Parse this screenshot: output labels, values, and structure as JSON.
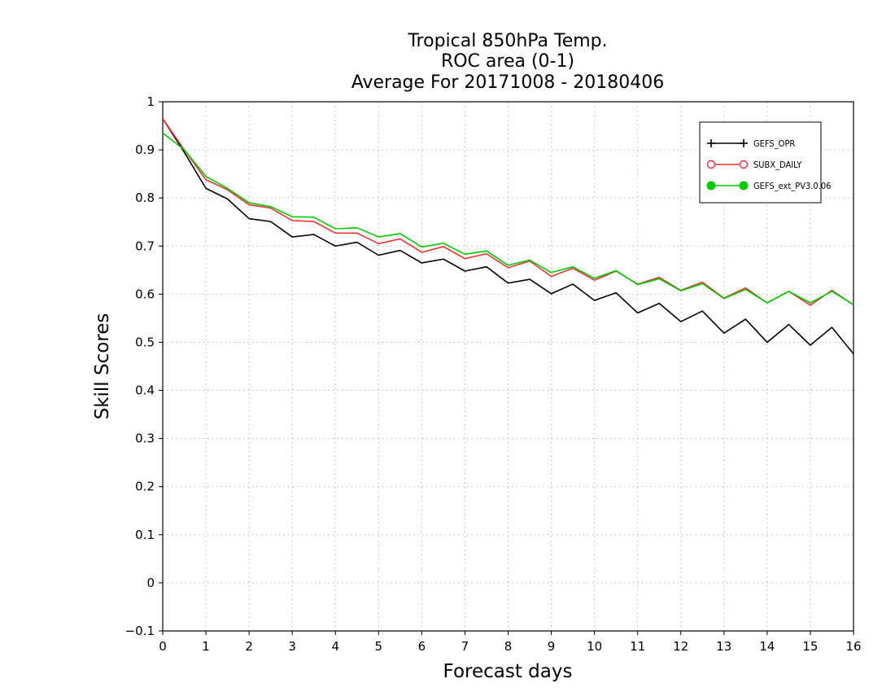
{
  "chart_data": {
    "type": "line",
    "title": [
      "Tropical 850hPa Temp.",
      "ROC area (0-1)",
      "Average For 20171008 - 20180406"
    ],
    "xlabel": "Forecast days",
    "ylabel": "Skill Scores",
    "xlim": [
      0,
      16
    ],
    "ylim": [
      -0.1,
      1
    ],
    "xticks": [
      "0",
      "1",
      "2",
      "3",
      "4",
      "5",
      "6",
      "7",
      "8",
      "9",
      "10",
      "11",
      "12",
      "13",
      "14",
      "15",
      "16"
    ],
    "yticks": [
      "−0.1",
      "0",
      "0.1",
      "0.2",
      "0.3",
      "0.4",
      "0.5",
      "0.6",
      "0.7",
      "0.8",
      "0.9",
      "1"
    ],
    "grid": true,
    "legend_position": "top-right",
    "x": [
      0,
      0.5,
      1,
      1.5,
      2,
      2.5,
      3,
      3.5,
      4,
      4.5,
      5,
      5.5,
      6,
      6.5,
      7,
      7.5,
      8,
      8.5,
      9,
      9.5,
      10,
      10.5,
      11,
      11.5,
      12,
      12.5,
      13,
      13.5,
      14,
      14.5,
      15,
      15.5,
      16
    ],
    "series": [
      {
        "name": "GEFS_OPR",
        "color": "#000000",
        "marker": "plus",
        "values": [
          0.965,
          0.895,
          0.82,
          0.798,
          0.757,
          0.751,
          0.719,
          0.724,
          0.7,
          0.708,
          0.681,
          0.691,
          0.665,
          0.673,
          0.648,
          0.657,
          0.623,
          0.631,
          0.601,
          0.621,
          0.587,
          0.603,
          0.561,
          0.581,
          0.543,
          0.565,
          0.519,
          0.548,
          0.5,
          0.537,
          0.494,
          0.531,
          0.476
        ]
      },
      {
        "name": "SUBX_DAILY",
        "color": "#ee3333",
        "marker": "open-circle",
        "values": [
          0.965,
          0.9,
          0.838,
          0.817,
          0.786,
          0.779,
          0.753,
          0.751,
          0.727,
          0.727,
          0.705,
          0.715,
          0.687,
          0.699,
          0.674,
          0.684,
          0.655,
          0.669,
          0.637,
          0.654,
          0.629,
          0.648,
          0.621,
          0.635,
          0.608,
          0.625,
          0.592,
          0.613,
          0.582,
          0.606,
          0.577,
          0.608,
          0.578
        ]
      },
      {
        "name": "GEFS_ext_PV3.0.06",
        "color": "#00cc00",
        "marker": "filled-circle",
        "values": [
          0.935,
          0.9,
          0.845,
          0.82,
          0.79,
          0.782,
          0.761,
          0.76,
          0.736,
          0.738,
          0.719,
          0.726,
          0.698,
          0.706,
          0.683,
          0.69,
          0.66,
          0.671,
          0.645,
          0.657,
          0.633,
          0.649,
          0.62,
          0.632,
          0.607,
          0.622,
          0.591,
          0.61,
          0.582,
          0.606,
          0.582,
          0.606,
          0.578
        ]
      }
    ]
  }
}
